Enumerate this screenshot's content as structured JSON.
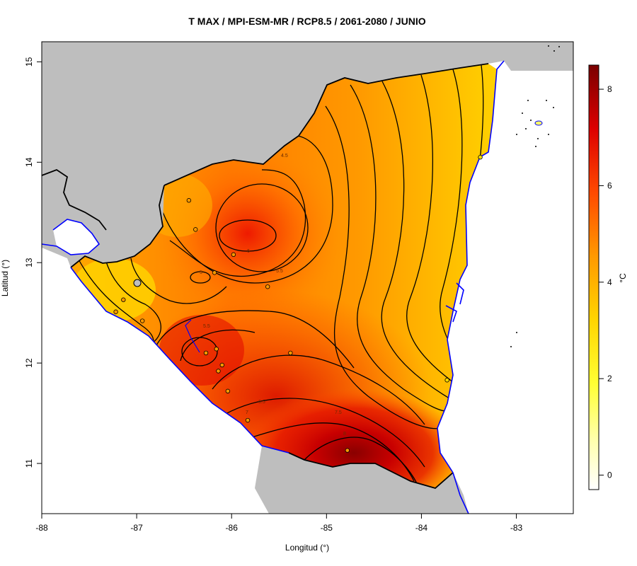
{
  "title": "T MAX / MPI-ESM-MR / RCP8.5 / 2061-2080 / JUNIO",
  "x_axis": {
    "label": "Longitud (°)",
    "ticks": [
      "-88",
      "-87",
      "-86",
      "-85",
      "-84",
      "-83"
    ],
    "range": [
      -88,
      -82.4
    ]
  },
  "y_axis": {
    "label": "Latitud (°)",
    "ticks": [
      "11",
      "12",
      "13",
      "14",
      "15"
    ],
    "range": [
      10.5,
      15.2
    ]
  },
  "colorbar": {
    "unit": "°C",
    "ticks": [
      "0",
      "2",
      "4",
      "6",
      "8"
    ],
    "range": [
      -0.3,
      8.5
    ],
    "gradient": [
      "#ffffff",
      "#ffff66",
      "#ffdd00",
      "#ff9900",
      "#ff4400",
      "#dd0000",
      "#800000"
    ]
  },
  "colors": {
    "land_outside": "#bebebe",
    "sea": "#ffffff",
    "coastline": "#0000ff",
    "border": "#000000"
  },
  "contour_labels": [
    "6",
    "5.5",
    "5",
    "4.5",
    "6.5",
    "7",
    "8",
    "7.5"
  ],
  "chart_data": {
    "type": "heatmap",
    "title": "T MAX / MPI-ESM-MR / RCP8.5 / 2061-2080 / JUNIO",
    "xlabel": "Longitud (°)",
    "ylabel": "Latitud (°)",
    "xlim": [
      -88,
      -82.4
    ],
    "ylim": [
      10.5,
      15.2
    ],
    "zlim": [
      -0.3,
      8.5
    ],
    "zunit": "°C",
    "stations": [
      {
        "lon": -86.45,
        "lat": 13.62
      },
      {
        "lon": -86.38,
        "lat": 13.33
      },
      {
        "lon": -86.18,
        "lat": 12.9
      },
      {
        "lon": -85.98,
        "lat": 13.08
      },
      {
        "lon": -85.62,
        "lat": 12.76
      },
      {
        "lon": -87.14,
        "lat": 12.63
      },
      {
        "lon": -87.22,
        "lat": 12.51
      },
      {
        "lon": -86.94,
        "lat": 12.42
      },
      {
        "lon": -86.27,
        "lat": 12.1
      },
      {
        "lon": -86.16,
        "lat": 12.14
      },
      {
        "lon": -86.1,
        "lat": 11.98
      },
      {
        "lon": -86.14,
        "lat": 11.92
      },
      {
        "lon": -86.04,
        "lat": 11.72
      },
      {
        "lon": -85.38,
        "lat": 12.1
      },
      {
        "lon": -85.83,
        "lat": 11.43
      },
      {
        "lon": -84.78,
        "lat": 11.13
      },
      {
        "lon": -83.38,
        "lat": 14.05
      },
      {
        "lon": -83.73,
        "lat": 11.83
      }
    ]
  }
}
